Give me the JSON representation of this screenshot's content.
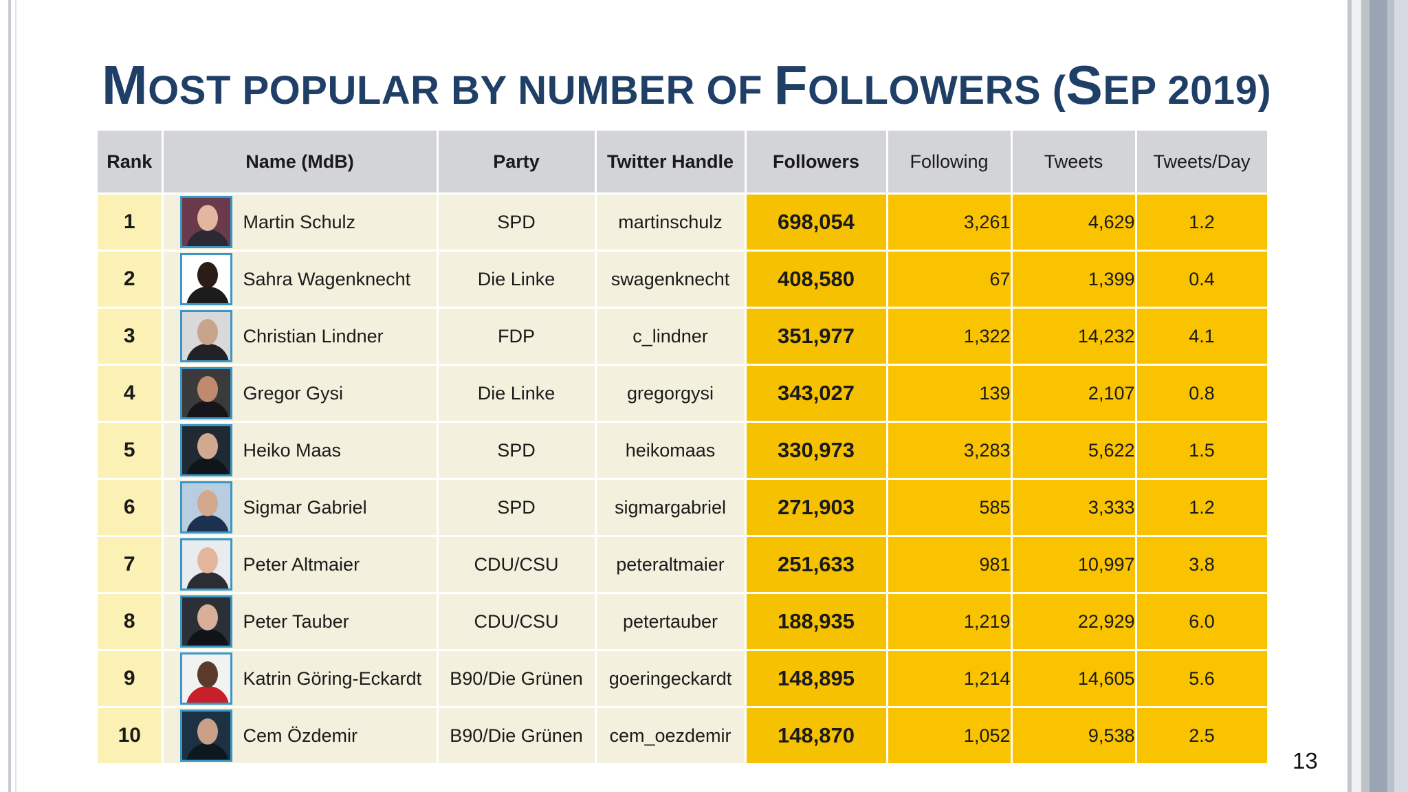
{
  "slide": {
    "title_parts": [
      "M",
      "OST POPULAR BY NUMBER OF ",
      "F",
      "OLLOWERS (",
      "S",
      "EP 2019)"
    ],
    "page_number": "13"
  },
  "table": {
    "headers": {
      "rank": "Rank",
      "name": "Name (MdB)",
      "party": "Party",
      "handle": "Twitter Handle",
      "followers": "Followers",
      "following": "Following",
      "tweets": "Tweets",
      "tweets_per_day": "Tweets/Day"
    },
    "rows": [
      {
        "rank": "1",
        "name": "Martin Schulz",
        "party": "SPD",
        "handle": "martinschulz",
        "followers": "698,054",
        "following": "3,261",
        "tweets": "4,629",
        "tweets_per_day": "1.2"
      },
      {
        "rank": "2",
        "name": "Sahra Wagenknecht",
        "party": "Die Linke",
        "handle": "swagenknecht",
        "followers": "408,580",
        "following": "67",
        "tweets": "1,399",
        "tweets_per_day": "0.4"
      },
      {
        "rank": "3",
        "name": "Christian Lindner",
        "party": "FDP",
        "handle": "c_lindner",
        "followers": "351,977",
        "following": "1,322",
        "tweets": "14,232",
        "tweets_per_day": "4.1"
      },
      {
        "rank": "4",
        "name": "Gregor Gysi",
        "party": "Die Linke",
        "handle": "gregorgysi",
        "followers": "343,027",
        "following": "139",
        "tweets": "2,107",
        "tweets_per_day": "0.8"
      },
      {
        "rank": "5",
        "name": "Heiko Maas",
        "party": "SPD",
        "handle": "heikomaas",
        "followers": "330,973",
        "following": "3,283",
        "tweets": "5,622",
        "tweets_per_day": "1.5"
      },
      {
        "rank": "6",
        "name": "Sigmar Gabriel",
        "party": "SPD",
        "handle": "sigmargabriel",
        "followers": "271,903",
        "following": "585",
        "tweets": "3,333",
        "tweets_per_day": "1.2"
      },
      {
        "rank": "7",
        "name": "Peter Altmaier",
        "party": "CDU/CSU",
        "handle": "peteraltmaier",
        "followers": "251,633",
        "following": "981",
        "tweets": "10,997",
        "tweets_per_day": "3.8"
      },
      {
        "rank": "8",
        "name": "Peter Tauber",
        "party": "CDU/CSU",
        "handle": "petertauber",
        "followers": "188,935",
        "following": "1,219",
        "tweets": "22,929",
        "tweets_per_day": "6.0"
      },
      {
        "rank": "9",
        "name": "Katrin Göring-Eckardt",
        "party": "B90/Die Grünen",
        "handle": "goeringeckardt",
        "followers": "148,895",
        "following": "1,214",
        "tweets": "14,605",
        "tweets_per_day": "5.6"
      },
      {
        "rank": "10",
        "name": "Cem Özdemir",
        "party": "B90/Die Grünen",
        "handle": "cem_oezdemir",
        "followers": "148,870",
        "following": "1,052",
        "tweets": "9,538",
        "tweets_per_day": "2.5"
      }
    ]
  },
  "colors": {
    "title": "#1f3f66",
    "header_bg": "#d3d4d7",
    "rank_bg": "#fbf1b4",
    "text_cols_bg": "#f3f0dd",
    "highlight_bg": "#f9c300",
    "avatar_border": "#3b96c8"
  }
}
